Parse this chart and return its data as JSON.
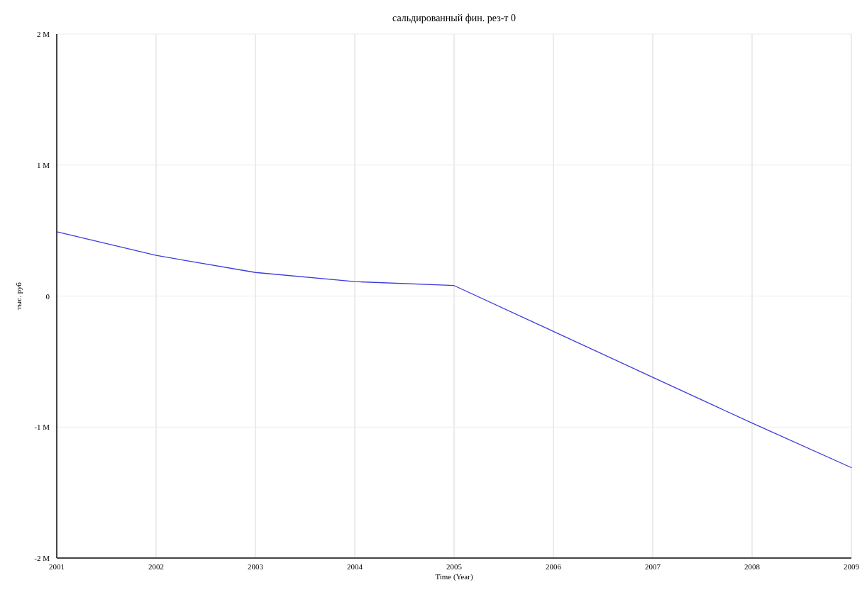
{
  "chart_data": {
    "type": "line",
    "title": "сальдированный фин. рез-т 0",
    "xlabel": "Time (Year)",
    "ylabel": "тыс. руб",
    "x": [
      2001,
      2002,
      2003,
      2004,
      2005,
      2006,
      2007,
      2008,
      2009
    ],
    "series": [
      {
        "color": "#3c3cdc",
        "values": [
          490000,
          310000,
          180000,
          110000,
          80000,
          -270000,
          -620000,
          -970000,
          -1310000
        ]
      }
    ],
    "xlim": [
      2001,
      2009
    ],
    "xticks": [
      2001,
      2002,
      2003,
      2004,
      2005,
      2006,
      2007,
      2008,
      2009
    ],
    "ylim": [
      -2000000,
      2000000
    ],
    "yticks": [
      {
        "value": -2000000,
        "label": "-2 M"
      },
      {
        "value": -1000000,
        "label": "-1 M"
      },
      0,
      {
        "value": 1000000,
        "label": "1 M"
      },
      {
        "value": 2000000,
        "label": "2 M"
      }
    ],
    "grid": true,
    "marker": "none",
    "line_style": "solid"
  }
}
